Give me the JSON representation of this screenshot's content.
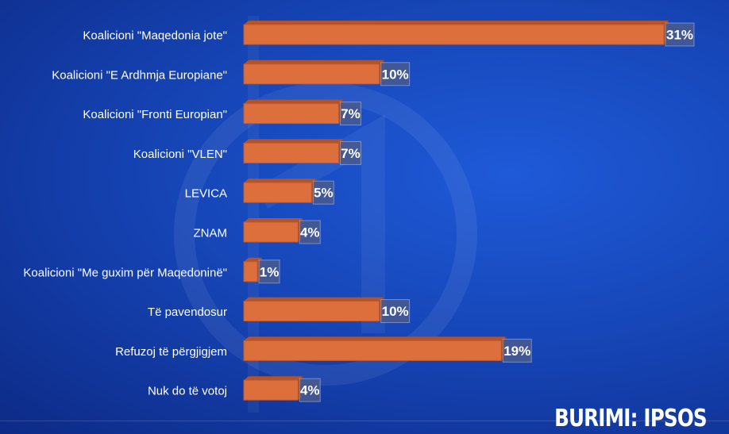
{
  "source_label": "BURIMI: IPSOS",
  "colors": {
    "bar": "#dd6f3c",
    "bar_top": "#b4532a",
    "label_box": "#4a5a8e"
  },
  "chart_data": {
    "type": "bar",
    "orientation": "horizontal",
    "categories": [
      "Koalicioni \"Maqedonia jote\"",
      "Koalicioni \"E Ardhmja Europiane\"",
      "Koalicioni \"Fronti Europian\"",
      "Koalicioni \"VLEN\"",
      "LEVICA",
      "ZNAM",
      "Koalicioni \"Me guxim për Maqedoninë\"",
      "Të pavendosur",
      "Refuzoj të përgjigjem",
      "Nuk do të votoj"
    ],
    "values": [
      31,
      10,
      7,
      7,
      5,
      4,
      1,
      10,
      19,
      4
    ],
    "data_labels": [
      "31%",
      "10%",
      "7%",
      "7%",
      "5%",
      "4%",
      "1%",
      "10%",
      "19%",
      "4%"
    ],
    "xlim": [
      0,
      31
    ],
    "grid": false,
    "legend": "none"
  }
}
